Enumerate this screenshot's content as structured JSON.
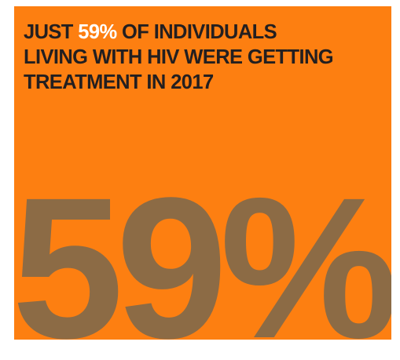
{
  "headline": {
    "prefix": "JUST ",
    "highlight": "59%",
    "line1_rest": " OF INDIVIDUALS",
    "line2": "LIVING WITH HIV WERE GETTING",
    "line3": "TREATMENT IN 2017"
  },
  "big_number": "59%",
  "colors": {
    "background": "#fd7f11",
    "headline_text": "#231f20",
    "highlight_text": "#ffffff",
    "big_number": "#8c6b45"
  }
}
